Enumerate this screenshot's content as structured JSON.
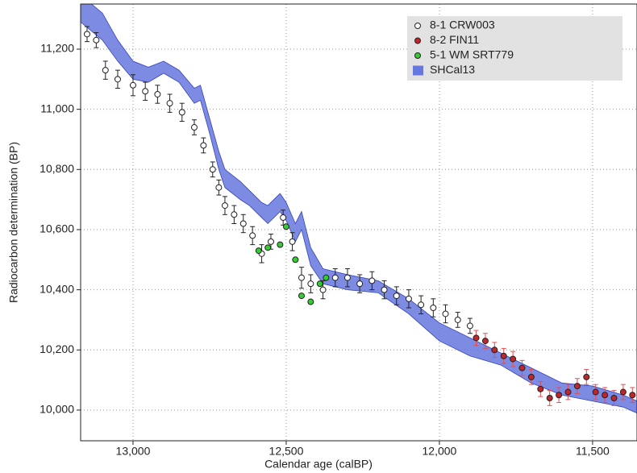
{
  "chart_data": {
    "type": "scatter",
    "x_label": "Calendar age (calBP)",
    "y_label": "Radiocarbon determination (BP)",
    "xlim": [
      13171,
      11355
    ],
    "ylim": [
      9898,
      11350
    ],
    "xticks": [
      {
        "value": 13000,
        "label": "13,000"
      },
      {
        "value": 12500,
        "label": "12,500"
      },
      {
        "value": 12000,
        "label": "12,000"
      },
      {
        "value": 11500,
        "label": "11,500"
      }
    ],
    "yticks": [
      {
        "value": 10000,
        "label": "10,000"
      },
      {
        "value": 10200,
        "label": "10,200"
      },
      {
        "value": 10400,
        "label": "10,400"
      },
      {
        "value": 10600,
        "label": "10,600"
      },
      {
        "value": 10800,
        "label": "10,800"
      },
      {
        "value": 11000,
        "label": "11,000"
      },
      {
        "value": 11200,
        "label": "11,200"
      }
    ],
    "grid": true,
    "legend": "upper right",
    "band": {
      "name": "SHCal13",
      "color": "#6677dd",
      "x": [
        13171,
        13100,
        13050,
        13000,
        12950,
        12900,
        12850,
        12800,
        12780,
        12750,
        12720,
        12700,
        12650,
        12620,
        12580,
        12560,
        12520,
        12500,
        12470,
        12450,
        12420,
        12380,
        12300,
        12200,
        12100,
        12000,
        11900,
        11800,
        11700,
        11600,
        11500,
        11400,
        11355
      ],
      "lower": [
        11290,
        11230,
        11160,
        11100,
        11090,
        11120,
        11090,
        11020,
        11030,
        10920,
        10800,
        10740,
        10700,
        10680,
        10640,
        10620,
        10660,
        10630,
        10560,
        10600,
        10480,
        10420,
        10400,
        10390,
        10320,
        10230,
        10180,
        10150,
        10090,
        10050,
        10030,
        10010,
        9990
      ],
      "upper": [
        11380,
        11320,
        11230,
        11160,
        11140,
        11160,
        11130,
        11070,
        11080,
        10970,
        10860,
        10800,
        10760,
        10730,
        10690,
        10680,
        10720,
        10690,
        10620,
        10660,
        10540,
        10470,
        10450,
        10430,
        10370,
        10290,
        10240,
        10190,
        10140,
        10090,
        10080,
        10050,
        10030
      ]
    },
    "series": [
      {
        "name": "8-1 CRW003",
        "color": "#ffffff",
        "error_color": "#222222",
        "x": [
          13150,
          13120,
          13090,
          13050,
          13000,
          12960,
          12920,
          12880,
          12840,
          12800,
          12770,
          12740,
          12720,
          12700,
          12670,
          12640,
          12610,
          12580,
          12550,
          12510,
          12480,
          12450,
          12420,
          12380,
          12340,
          12300,
          12260,
          12220,
          12180,
          12140,
          12100,
          12060,
          12020,
          11980,
          11940,
          11900
        ],
        "values": [
          11250,
          11230,
          11130,
          11100,
          11080,
          11060,
          11050,
          11020,
          10990,
          10940,
          10880,
          10800,
          10740,
          10680,
          10650,
          10620,
          10580,
          10520,
          10560,
          10640,
          10560,
          10440,
          10420,
          10400,
          10440,
          10440,
          10420,
          10430,
          10400,
          10380,
          10370,
          10350,
          10340,
          10320,
          10300,
          10280
        ],
        "errors": [
          25,
          25,
          30,
          30,
          35,
          30,
          30,
          30,
          30,
          25,
          25,
          25,
          25,
          30,
          30,
          30,
          30,
          30,
          25,
          25,
          30,
          35,
          30,
          30,
          30,
          30,
          30,
          30,
          30,
          30,
          30,
          30,
          30,
          30,
          25,
          25
        ]
      },
      {
        "name": "8-2 FIN11",
        "color": "#c0272d",
        "error_color": "#e05050",
        "x": [
          11880,
          11850,
          11820,
          11790,
          11760,
          11730,
          11700,
          11670,
          11640,
          11610,
          11580,
          11550,
          11520,
          11490,
          11460,
          11430,
          11400,
          11370
        ],
        "values": [
          10240,
          10230,
          10200,
          10180,
          10170,
          10140,
          10110,
          10070,
          10040,
          10050,
          10060,
          10080,
          10110,
          10060,
          10050,
          10040,
          10060,
          10050
        ],
        "errors": [
          25,
          25,
          25,
          25,
          25,
          25,
          25,
          25,
          25,
          25,
          25,
          25,
          25,
          25,
          25,
          25,
          25,
          25
        ]
      },
      {
        "name": "5-1 WM SRT779",
        "color": "#33cc33",
        "x": [
          12590,
          12560,
          12520,
          12500,
          12470,
          12450,
          12420,
          12390,
          12370
        ],
        "values": [
          10530,
          10540,
          10550,
          10610,
          10500,
          10380,
          10360,
          10420,
          10440
        ]
      }
    ]
  }
}
